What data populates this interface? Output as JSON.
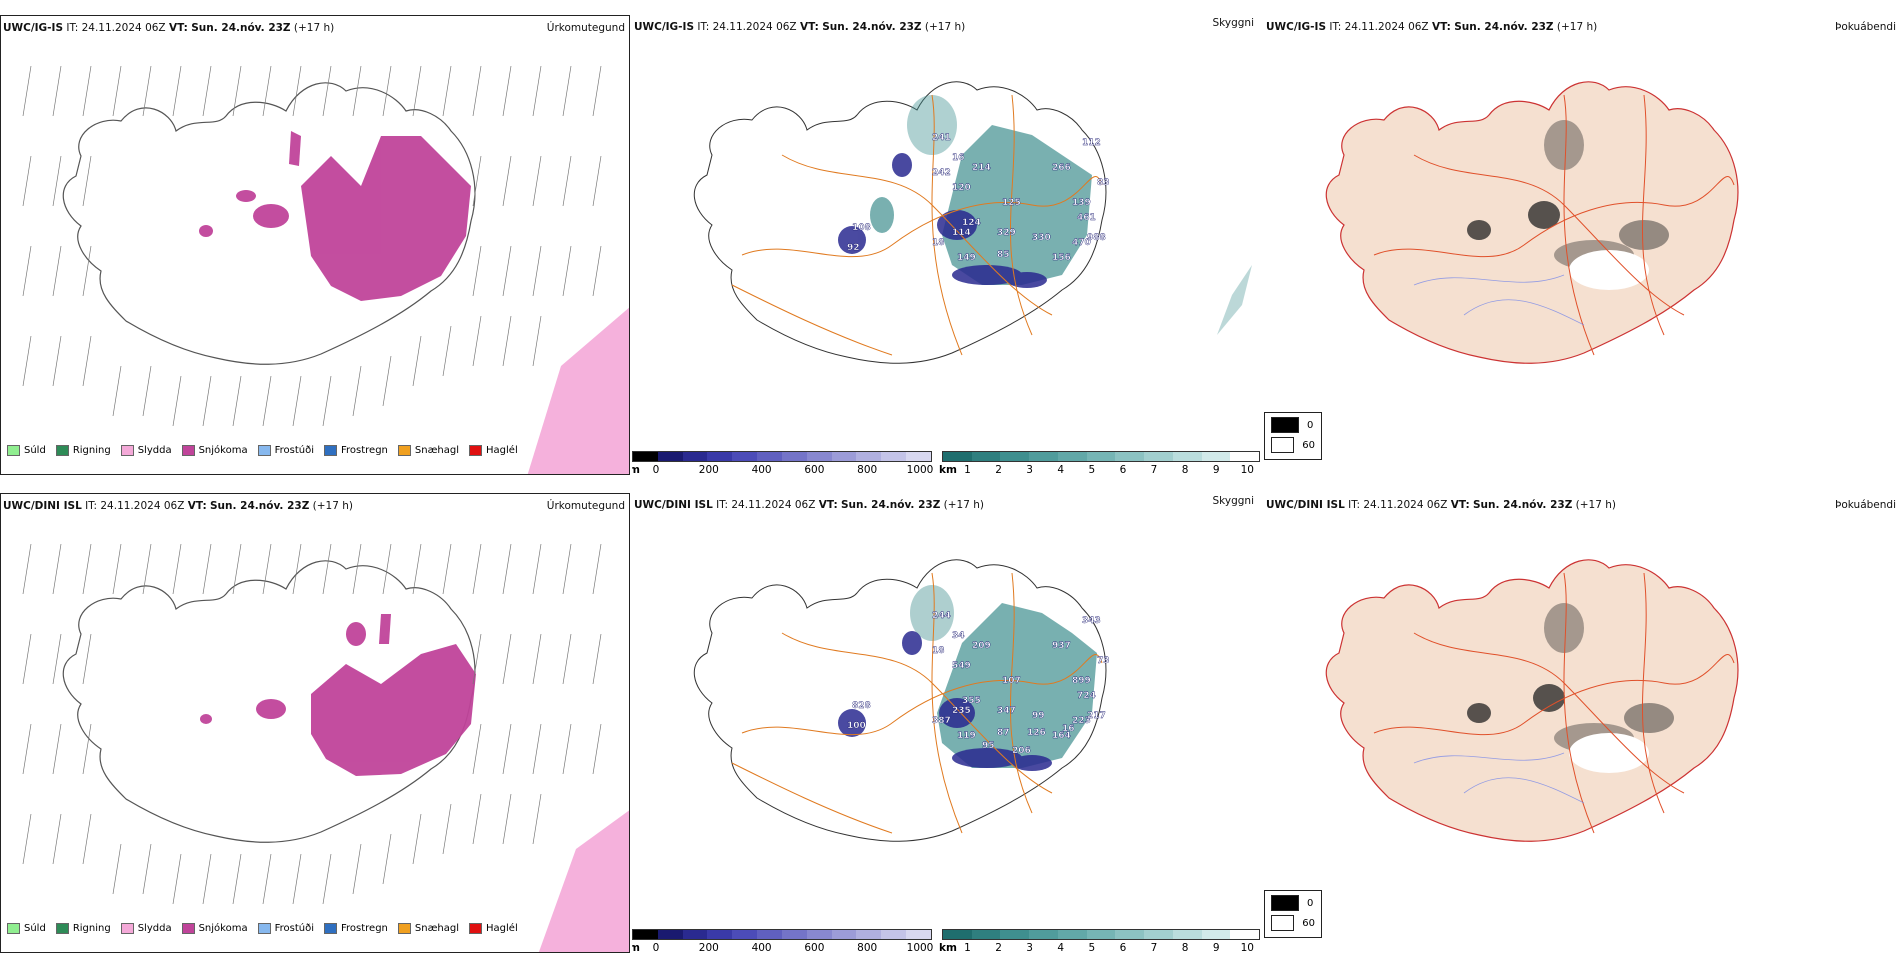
{
  "rows": [
    {
      "precip": {
        "model": "UWC/IG-IS",
        "it_label": "IT:",
        "it_value": "24.11.2024 06Z",
        "vt_label": "VT:",
        "vt_value": "Sun. 24.nóv. 23Z",
        "lead": "(+17 h)",
        "title": "Úrkomutegund"
      },
      "cloud": {
        "model": "UWC/IG-IS",
        "it_label": "IT:",
        "it_value": "24.11.2024 06Z",
        "vt_label": "VT:",
        "vt_value": "Sun. 24.nóv. 23Z",
        "lead": "(+17 h)",
        "title": "Skyggni",
        "labels": [
          "241",
          "16",
          "214",
          "242",
          "120",
          "125",
          "266",
          "112",
          "83",
          "139",
          "461",
          "108",
          "124",
          "114",
          "329",
          "18",
          "149",
          "85",
          "330",
          "92",
          "470",
          "988",
          "156"
        ]
      },
      "fog": {
        "model": "UWC/IG-IS",
        "it_label": "IT:",
        "it_value": "24.11.2024 06Z",
        "vt_label": "VT:",
        "vt_value": "Sun. 24.nóv. 23Z",
        "lead": "(+17 h)",
        "title": "Þokuábendi"
      }
    },
    {
      "precip": {
        "model": "UWC/DINI ISL",
        "it_label": "IT:",
        "it_value": "24.11.2024 06Z",
        "vt_label": "VT:",
        "vt_value": "Sun. 24.nóv. 23Z",
        "lead": "(+17 h)",
        "title": "Úrkomutegund"
      },
      "cloud": {
        "model": "UWC/DINI ISL",
        "it_label": "IT:",
        "it_value": "24.11.2024 06Z",
        "vt_label": "VT:",
        "vt_value": "Sun. 24.nóv. 23Z",
        "lead": "(+17 h)",
        "title": "Skyggni",
        "labels": [
          "244",
          "34",
          "209",
          "18",
          "549",
          "107",
          "937",
          "343",
          "73",
          "899",
          "724",
          "828",
          "355",
          "235",
          "347",
          "387",
          "119",
          "87",
          "99",
          "100",
          "223",
          "217",
          "164",
          "95",
          "206",
          "126",
          "16"
        ]
      },
      "fog": {
        "model": "UWC/DINI ISL",
        "it_label": "IT:",
        "it_value": "24.11.2024 06Z",
        "vt_label": "VT:",
        "vt_value": "Sun. 24.nóv. 23Z",
        "lead": "(+17 h)",
        "title": "Þokuábendi"
      }
    }
  ],
  "precip_legend": [
    {
      "label": "Súld",
      "color": "#90ee90"
    },
    {
      "label": "Rigning",
      "color": "#2e8b57"
    },
    {
      "label": "Slydda",
      "color": "#f4a9d8"
    },
    {
      "label": "Snjókoma",
      "color": "#c0449a"
    },
    {
      "label": "Frostúði",
      "color": "#87b8ee"
    },
    {
      "label": "Frostregn",
      "color": "#2f6fc0"
    },
    {
      "label": "Snæhagl",
      "color": "#f0a020"
    },
    {
      "label": "Haglél",
      "color": "#e01010"
    }
  ],
  "height_bar": {
    "unit": "m",
    "ticks": [
      "0",
      "200",
      "400",
      "600",
      "800",
      "1000"
    ],
    "colors": [
      "#000000",
      "#1a1a70",
      "#2a2a90",
      "#3a3aa8",
      "#4c4cb8",
      "#6060c0",
      "#7474c8",
      "#8888d0",
      "#9c9cd8",
      "#b0b0e0",
      "#c4c4e8",
      "#d8d8f0"
    ]
  },
  "vis_bar": {
    "unit": "km",
    "ticks": [
      "1",
      "2",
      "3",
      "4",
      "5",
      "6",
      "7",
      "8",
      "9",
      "10"
    ],
    "colors": [
      "#1f6e6e",
      "#2f7f7f",
      "#3f8f8f",
      "#509c9c",
      "#62a8a8",
      "#76b5b5",
      "#8cc2c2",
      "#a2cfcf",
      "#badddd",
      "#d2eaea",
      "#ffffff"
    ]
  },
  "fog_legend": [
    {
      "value": "0",
      "color": "#000000"
    },
    {
      "value": "60",
      "color": "#ffffff"
    }
  ]
}
